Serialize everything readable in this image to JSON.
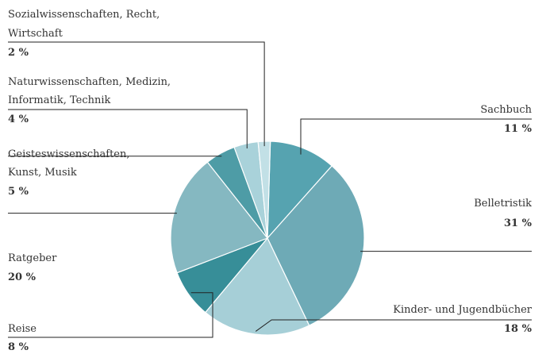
{
  "chart_data": {
    "type": "pie",
    "slices": [
      {
        "label": "Sachbuch",
        "value": 11,
        "value_label": "11 %",
        "color": "#56a3b0"
      },
      {
        "label": "Belletristik",
        "value": 31,
        "value_label": "31 %",
        "color": "#6eaab6"
      },
      {
        "label": "Kinder- und Jugendbücher",
        "value": 18,
        "value_label": "18 %",
        "color": "#a6cfd7"
      },
      {
        "label": "Reise",
        "value": 8,
        "value_label": "8 %",
        "color": "#378e98"
      },
      {
        "label": "Ratgeber",
        "value": 20,
        "value_label": "20 %",
        "color": "#85b8c1"
      },
      {
        "label": "Geisteswissenschaften, Kunst, Musik",
        "lines": [
          "Geisteswissenschaften,",
          "Kunst, Musik"
        ],
        "value": 5,
        "value_label": "5 %",
        "color": "#4e9ca6"
      },
      {
        "label": "Naturwissenschaften, Medizin, Informatik, Technik",
        "lines": [
          "Naturwissenschaften, Medizin,",
          "Informatik, Technik"
        ],
        "value": 4,
        "value_label": "4 %",
        "color": "#a9d2da"
      },
      {
        "label": "Sozialwissenschaften, Recht, Wirtschaft",
        "lines": [
          "Sozialwissenschaften, Recht,",
          "Wirtschaft"
        ],
        "value": 2,
        "value_label": "2 %",
        "color": "#c2e0e6"
      }
    ]
  }
}
